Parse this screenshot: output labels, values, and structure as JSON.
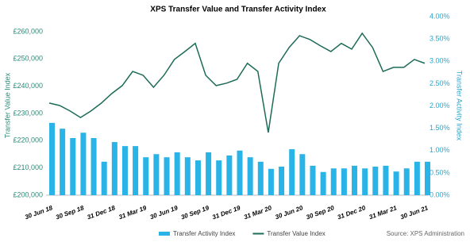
{
  "chart_data": {
    "type": "combo",
    "title": "XPS Transfer Value and Transfer Activity Index",
    "source": "Source: XPS Administration",
    "y_label": "Transfer Value Index",
    "y2_label": "Transfer Activity Index",
    "categories": [
      "30 Jun 18",
      null,
      null,
      "30 Sep 18",
      null,
      null,
      "31 Dec 18",
      null,
      null,
      "31 Mar 19",
      null,
      null,
      "30 Jun 19",
      null,
      null,
      "30 Sep 19",
      null,
      null,
      "31 Dec 19",
      null,
      null,
      "31 Mar 20",
      null,
      null,
      "30 Jun 20",
      null,
      null,
      "30 Sep 20",
      null,
      null,
      "31 Dec 20",
      null,
      null,
      "31 Mar 21",
      null,
      null,
      "30 Jun 21"
    ],
    "ylim": [
      200000,
      265500
    ],
    "yticks": [
      {
        "value": 200000,
        "label": "£200,000"
      },
      {
        "value": 210000,
        "label": "£210,000"
      },
      {
        "value": 220000,
        "label": "£220,000"
      },
      {
        "value": 230000,
        "label": "£230,000"
      },
      {
        "value": 240000,
        "label": "£240,000"
      },
      {
        "value": 250000,
        "label": "£250,000"
      },
      {
        "value": 260000,
        "label": "£260,000"
      }
    ],
    "y2lim": [
      0,
      4
    ],
    "y2ticks": [
      {
        "value": 0,
        "label": "0.00%"
      },
      {
        "value": 0.5,
        "label": "0.50%"
      },
      {
        "value": 1,
        "label": "1.00%"
      },
      {
        "value": 1.5,
        "label": "1.50%"
      },
      {
        "value": 2,
        "label": "2.00%"
      },
      {
        "value": 2.5,
        "label": "2.50%"
      },
      {
        "value": 3,
        "label": "3.00%"
      },
      {
        "value": 3.5,
        "label": "3.50%"
      },
      {
        "value": 4,
        "label": "4.00%"
      }
    ],
    "series": [
      {
        "name": "Transfer Activity Index",
        "type": "bar",
        "axis": "y2",
        "color": "#29b3e6",
        "values": [
          1.62,
          1.49,
          1.28,
          1.4,
          1.28,
          0.75,
          1.19,
          1.1,
          1.1,
          0.85,
          0.92,
          0.85,
          0.96,
          0.85,
          0.78,
          0.96,
          0.78,
          0.89,
          1.0,
          0.85,
          0.75,
          0.59,
          0.64,
          1.03,
          0.92,
          0.66,
          0.52,
          0.6,
          0.6,
          0.66,
          0.6,
          0.64,
          0.66,
          0.53,
          0.6,
          0.75,
          0.75
        ]
      },
      {
        "name": "Transfer Value Index",
        "type": "line",
        "axis": "y",
        "color": "#1d6b58",
        "values": [
          233800,
          232900,
          230900,
          228500,
          230900,
          233800,
          237300,
          240200,
          245400,
          244000,
          239600,
          244000,
          249800,
          252700,
          255700,
          244000,
          240200,
          241100,
          242500,
          248400,
          245400,
          223000,
          248400,
          254200,
          258500,
          257100,
          254800,
          252700,
          255700,
          253600,
          259400,
          254200,
          245400,
          246900,
          246900,
          249800,
          248400
        ]
      }
    ]
  }
}
